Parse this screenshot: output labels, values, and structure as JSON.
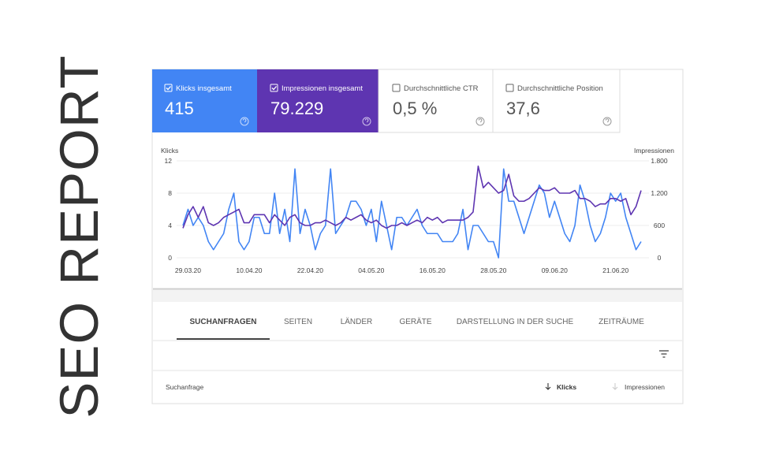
{
  "title": "SEO REPORT",
  "metrics": [
    {
      "label": "Klicks insgesamt",
      "value": "415"
    },
    {
      "label": "Impressionen insgesamt",
      "value": "79.229"
    },
    {
      "label": "Durchschnittliche CTR",
      "value": "0,5 %"
    },
    {
      "label": "Durchschnittliche Position",
      "value": "37,6"
    }
  ],
  "chart_data": {
    "type": "line",
    "ylabel": "Klicks",
    "y2label": "Impressionen",
    "categories": [
      null,
      "29.03.20",
      null,
      null,
      null,
      null,
      null,
      null,
      null,
      null,
      null,
      null,
      null,
      "10.04.20",
      null,
      null,
      null,
      null,
      null,
      null,
      null,
      null,
      null,
      null,
      null,
      "22.04.20",
      null,
      null,
      null,
      null,
      null,
      null,
      null,
      null,
      null,
      null,
      null,
      "04.05.20",
      null,
      null,
      null,
      null,
      null,
      null,
      null,
      null,
      null,
      null,
      null,
      "16.05.20",
      null,
      null,
      null,
      null,
      null,
      null,
      null,
      null,
      null,
      null,
      null,
      "28.05.20",
      null,
      null,
      null,
      null,
      null,
      null,
      null,
      null,
      null,
      null,
      null,
      "09.06.20",
      null,
      null,
      null,
      null,
      null,
      null,
      null,
      null,
      null,
      null,
      null,
      "21.06.20",
      null,
      null,
      null,
      null,
      null
    ],
    "series": [
      {
        "color": "#4285f4",
        "values": [
          4,
          6,
          4,
          5,
          4,
          2,
          1,
          2,
          3,
          6,
          8,
          2,
          1,
          2,
          5,
          5,
          3,
          3,
          8,
          3,
          6,
          2,
          11,
          3,
          6,
          4,
          1,
          3,
          4,
          11,
          3,
          4,
          5,
          7,
          7,
          6,
          4,
          6,
          2,
          7,
          4,
          1,
          5,
          5,
          4,
          5,
          6,
          4,
          3,
          3,
          3,
          2,
          2,
          2,
          3,
          6,
          1,
          4,
          4,
          3,
          2,
          2,
          0,
          11,
          7,
          7,
          5,
          3,
          5,
          7,
          9,
          8,
          5,
          7,
          5,
          3,
          2,
          4,
          9,
          7,
          4,
          2,
          3,
          5,
          8,
          7,
          8,
          5,
          3,
          1,
          2
        ]
      },
      {
        "color": "#5e35b1",
        "axis": "y2",
        "values": [
          550,
          800,
          950,
          750,
          950,
          650,
          600,
          650,
          750,
          800,
          850,
          900,
          650,
          650,
          800,
          800,
          800,
          650,
          800,
          700,
          600,
          750,
          800,
          650,
          600,
          600,
          650,
          650,
          700,
          650,
          600,
          650,
          750,
          700,
          750,
          800,
          700,
          650,
          700,
          600,
          550,
          600,
          600,
          650,
          600,
          650,
          700,
          650,
          750,
          700,
          750,
          650,
          700,
          700,
          700,
          700,
          750,
          850,
          1700,
          1300,
          1400,
          1300,
          1200,
          1250,
          1550,
          1150,
          1050,
          1050,
          1100,
          1200,
          1300,
          1250,
          1250,
          1300,
          1200,
          1200,
          1200,
          1250,
          1100,
          1100,
          1050,
          950,
          1000,
          1000,
          1100,
          1100,
          1050,
          1100,
          800,
          950,
          1250
        ]
      }
    ],
    "ylim": [
      0,
      12
    ],
    "yticks": [
      0,
      4,
      8,
      12
    ],
    "y2lim": [
      0,
      1800
    ],
    "y2ticks": [
      0,
      600,
      {
        "value": 1200,
        "label": "1.200"
      },
      {
        "value": 1800,
        "label": "1.800"
      }
    ],
    "grid": true
  },
  "tabs": [
    "SUCHANFRAGEN",
    "SEITEN",
    "LÄNDER",
    "GERÄTE",
    "DARSTELLUNG IN DER SUCHE",
    "ZEITRÄUME"
  ],
  "table": {
    "columns": [
      "Suchanfrage",
      "Klicks",
      "Impressionen"
    ]
  }
}
